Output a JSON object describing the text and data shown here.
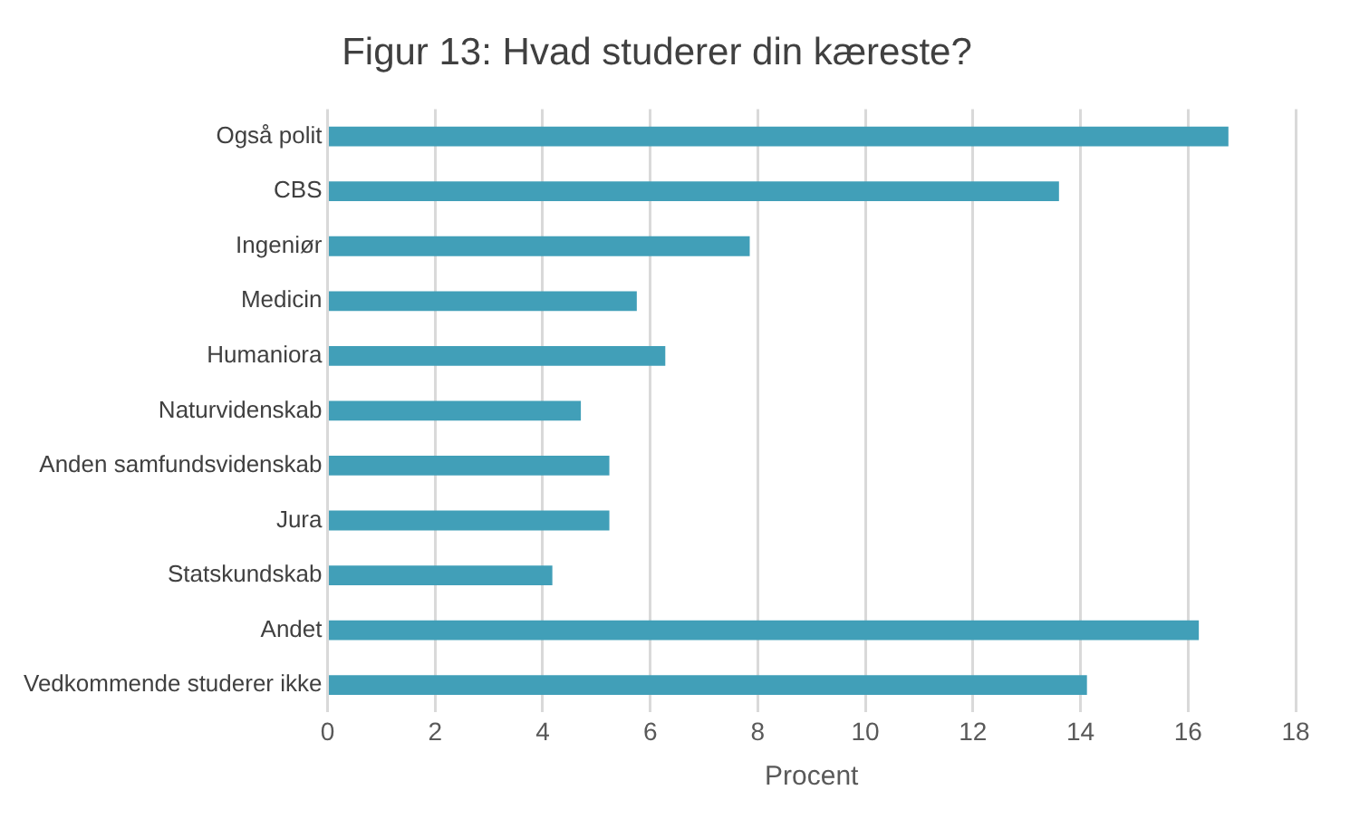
{
  "chart_data": {
    "type": "bar",
    "orientation": "horizontal",
    "title": "Figur 13: Hvad studerer din kæreste?",
    "xlabel": "Procent",
    "categories": [
      "Også polit",
      "CBS",
      "Ingeniør",
      "Medicin",
      "Humaniora",
      "Naturvidenskab",
      "Anden samfundsvidenskab",
      "Jura",
      "Statskundskab",
      "Andet",
      "Vedkommende studerer ikke"
    ],
    "values": [
      16.75,
      13.6,
      7.85,
      5.75,
      6.28,
      4.71,
      5.24,
      5.24,
      4.18,
      16.2,
      14.12
    ],
    "color": "#419fb8",
    "xlim": [
      0,
      18
    ],
    "xticks": [
      0,
      2,
      4,
      6,
      8,
      10,
      12,
      14,
      16,
      18
    ],
    "grid": "x",
    "legend": false
  }
}
